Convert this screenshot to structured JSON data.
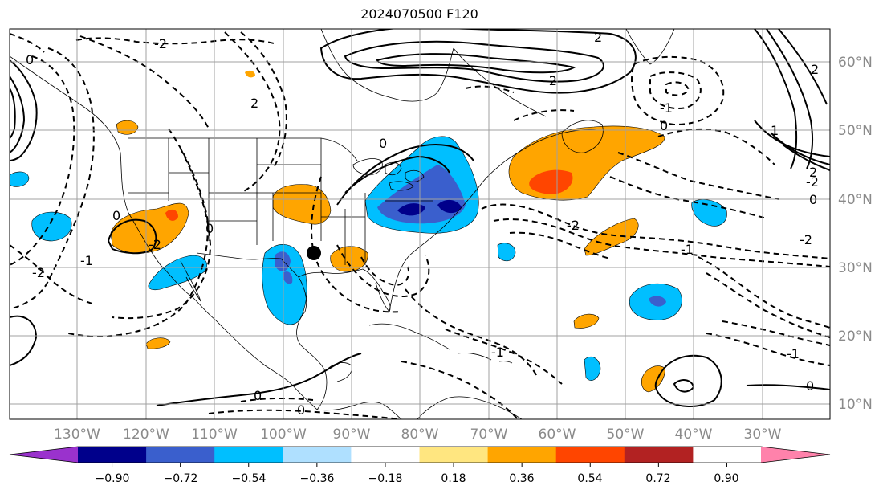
{
  "title": "2024070500 F120",
  "map": {
    "lon_labels": [
      "130°W",
      "120°W",
      "110°W",
      "100°W",
      "90°W",
      "80°W",
      "70°W",
      "60°W",
      "50°W",
      "40°W",
      "30°W"
    ],
    "lat_labels": [
      "60°N",
      "50°N",
      "40°N",
      "30°N",
      "20°N",
      "10°N"
    ],
    "contour_labels": [
      "-2",
      "0",
      "-2",
      "2",
      "0",
      "-1",
      "-2",
      "0",
      "-2",
      "0",
      "1",
      "2",
      "-2",
      "0",
      "-1",
      "-2",
      "0",
      "-1",
      "0",
      "2",
      "-2",
      "-1",
      "0",
      "-1",
      "0",
      "2"
    ]
  },
  "colorbar": {
    "ticks": [
      "−0.90",
      "−0.72",
      "−0.54",
      "−0.36",
      "−0.18",
      "0.18",
      "0.36",
      "0.54",
      "0.72",
      "0.90"
    ],
    "colors": [
      "#9a32cd",
      "#00008b",
      "#3a5fcd",
      "#00bfff",
      "#afe0ff",
      "#ffffff",
      "#ffe680",
      "#ffa500",
      "#ff4500",
      "#b22222",
      "#ff82ab"
    ]
  },
  "colors": {
    "neg_light": "#00bfff",
    "neg_mid": "#3a5fcd",
    "neg_dark": "#00008b",
    "pos_light": "#ffa500",
    "pos_mid": "#ff4500",
    "marker": "#000000"
  }
}
